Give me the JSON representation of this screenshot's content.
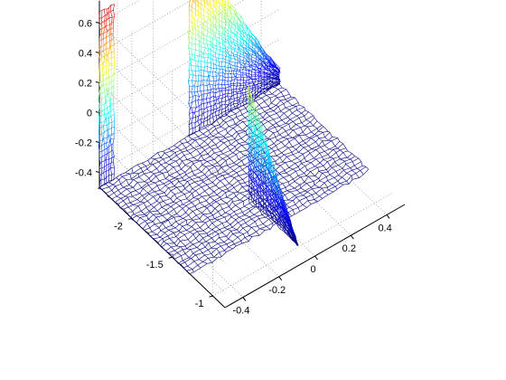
{
  "chart_data": {
    "type": "surface-mesh-3d",
    "title": "",
    "xlabel": "",
    "ylabel": "",
    "zlabel": "",
    "grid": true,
    "colormap": "jet",
    "x_ticks": [
      -0.4,
      -0.2,
      0,
      0.2,
      0.4
    ],
    "y_ticks": [
      -2,
      -1.5,
      -1
    ],
    "z_ticks": [
      -0.4,
      -0.2,
      0,
      0.2,
      0.4,
      0.6
    ],
    "x_tick_labels": [
      "-0.4",
      "-0.2",
      "0",
      "0.2",
      "0.4"
    ],
    "y_tick_labels": [
      "-2",
      "-1.5",
      "-1"
    ],
    "z_tick_labels": [
      "-0.4",
      "-0.2",
      "0",
      "0.2",
      "0.4",
      "0.6"
    ],
    "xlim": [
      -0.5,
      0.5
    ],
    "ylim": [
      -2.4,
      -0.85
    ],
    "zlim": [
      -0.5,
      0.75
    ],
    "surface": {
      "floor_z": -0.5,
      "walls": [
        {
          "x": [
            -0.5,
            -0.42
          ],
          "y": [
            -2.35,
            -2.35
          ],
          "z_top": 0.67
        },
        {
          "x": [
            -0.02,
            -0.02
          ],
          "y": [
            -1.6,
            -1.0
          ],
          "z_top": [
            0.25,
            -0.45
          ]
        },
        {
          "x": [
            0.0,
            0.5
          ],
          "y": [
            -2.35,
            -2.35
          ],
          "z_top": [
            0.75,
            -0.45
          ]
        }
      ]
    }
  }
}
